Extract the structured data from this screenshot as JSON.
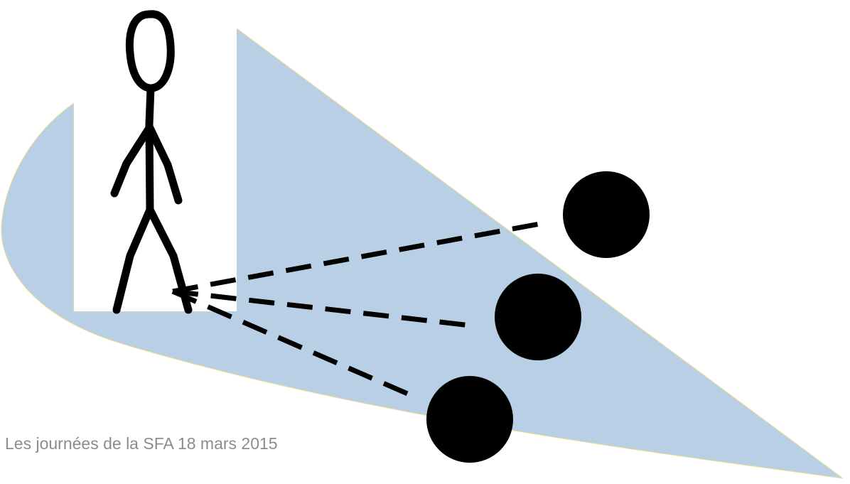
{
  "colors": {
    "field_of_view": "#b8cfe6",
    "field_of_view_edge": "#e8e08a",
    "figure_panel": "#ffffff",
    "stroke": "#000000",
    "footer_text": "#8c8c8c"
  },
  "footer": {
    "text": "Les journées de la SFA 18 mars 2015"
  }
}
